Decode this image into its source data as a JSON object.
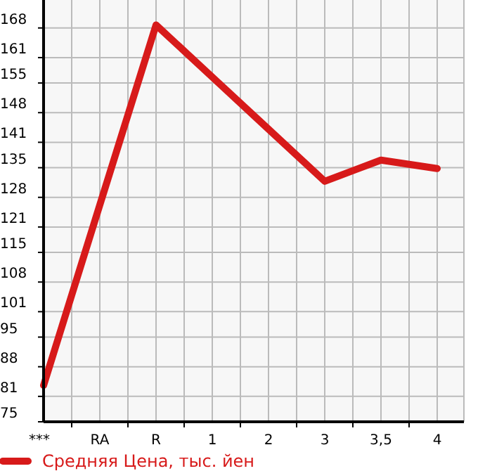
{
  "chart_data": {
    "type": "line",
    "categories": [
      "***",
      "RA",
      "R",
      "1",
      "2",
      "3",
      "3,5",
      "4"
    ],
    "series": [
      {
        "name": "Средняя Цена, тыс. йен",
        "color": "#d71a1a",
        "values": [
          83.6,
          126.2,
          168.7,
          156.4,
          144.1,
          131.8,
          136.8,
          134.8
        ]
      }
    ],
    "ylim": [
      75,
      174.6
    ],
    "yticks": [
      75,
      81,
      88,
      95,
      101,
      108,
      115,
      121,
      128,
      135,
      141,
      148,
      155,
      161,
      168
    ],
    "grid": true,
    "legend": "bottom",
    "marker": "none",
    "line_style": "solid"
  }
}
